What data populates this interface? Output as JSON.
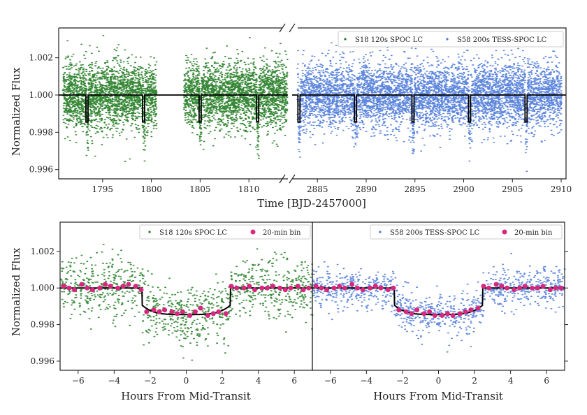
{
  "chart_data": [
    {
      "id": "top",
      "type": "scatter",
      "ylabel": "Normalized Flux",
      "xlabel": "Time [BJD-2457000]",
      "ylim": [
        0.9955,
        1.0036
      ],
      "yticks": [
        0.996,
        0.998,
        1.0,
        1.002
      ],
      "ytick_labels": [
        "0.996",
        "0.998",
        "1.000",
        "1.002"
      ],
      "segments": [
        {
          "name": "S18 120s SPOC LC",
          "color": "#1f7a1f",
          "xlim": [
            1790.5,
            1814.0
          ],
          "xticks": [
            1795,
            1800,
            1805,
            1810
          ],
          "xtick_labels": [
            "1795",
            "1800",
            "1805",
            "1810"
          ],
          "data_ranges": [
            [
              1790.9,
              1800.5
            ],
            [
              1803.3,
              1813.9
            ]
          ],
          "transit_times": [
            1793.4,
            1799.2,
            1805.0,
            1810.9
          ]
        },
        {
          "name": "S58 200s TESS-SPOC LC",
          "color": "#4a78d8",
          "xlim": [
            2882.4,
            2910.5
          ],
          "xticks": [
            2885,
            2890,
            2895,
            2900,
            2905,
            2910
          ],
          "xtick_labels": [
            "2885",
            "2890",
            "2895",
            "2900",
            "2905",
            "2910"
          ],
          "data_ranges": [
            [
              2882.9,
              2910.0
            ]
          ],
          "transit_times": [
            2883.1,
            2888.9,
            2894.8,
            2900.6,
            2906.4
          ]
        }
      ],
      "model": {
        "baseline": 1.0,
        "transit_depth": 0.00145,
        "color": "#000000"
      },
      "legend": [
        {
          "label": "S18 120s SPOC LC",
          "color": "#1f7a1f"
        },
        {
          "label": "S58 200s TESS-SPOC LC",
          "color": "#4a78d8"
        }
      ]
    },
    {
      "id": "bottom-left",
      "type": "scatter",
      "ylabel": "Normalized Flux",
      "xlabel": "Hours From Mid-Transit",
      "xlim": [
        -7,
        7
      ],
      "ylim": [
        0.9955,
        1.0036
      ],
      "xticks": [
        -6,
        -4,
        -2,
        0,
        2,
        4,
        6
      ],
      "xtick_labels": [
        "−6",
        "−4",
        "−2",
        "0",
        "2",
        "4",
        "6"
      ],
      "yticks": [
        0.996,
        0.998,
        1.0,
        1.002
      ],
      "ytick_labels": [
        "0.996",
        "0.998",
        "1.000",
        "1.002"
      ],
      "series": [
        {
          "name": "S18 120s SPOC LC",
          "color": "#1f7a1f",
          "type": "scatter"
        },
        {
          "name": "20-min bin",
          "color": "#d6287e",
          "type": "scatter",
          "x": [
            -6.8,
            -6.5,
            -6.2,
            -5.8,
            -5.5,
            -5.2,
            -4.8,
            -4.5,
            -4.2,
            -3.8,
            -3.5,
            -3.2,
            -2.8,
            -2.5,
            -2.2,
            -1.8,
            -1.5,
            -1.2,
            -0.8,
            -0.5,
            -0.2,
            0.2,
            0.5,
            0.8,
            1.2,
            1.5,
            1.8,
            2.2,
            2.5,
            2.8,
            3.2,
            3.5,
            3.8,
            4.2,
            4.5,
            4.8,
            5.2,
            5.5,
            5.8,
            6.2,
            6.5,
            6.8
          ],
          "y": [
            1.0001,
            1.0,
            0.9999,
            1.0002,
            1.0,
            0.9999,
            1.0,
            1.0002,
            1.0001,
            1.0,
            1.0001,
            1.0002,
            1.0001,
            0.9999,
            0.9987,
            0.9988,
            0.9987,
            0.9988,
            0.9987,
            0.9986,
            0.9987,
            0.9985,
            0.9987,
            0.9989,
            0.9985,
            0.9986,
            0.9987,
            0.9986,
            1.0001,
            1.0,
            1.0,
            1.0001,
            0.9999,
            1.0,
            1.0,
            1.0001,
            1.0,
            0.9999,
            1.0,
            1.0001,
            0.9999,
            1.0
          ]
        }
      ],
      "model": {
        "baseline": 1.0,
        "depth_center": 0.00145,
        "half_duration_hours": 2.45,
        "color": "#000000"
      },
      "legend": [
        {
          "label": "S18 120s SPOC LC",
          "color": "#1f7a1f"
        },
        {
          "label": "20-min bin",
          "color": "#d6287e"
        }
      ]
    },
    {
      "id": "bottom-right",
      "type": "scatter",
      "xlabel": "Hours From Mid-Transit",
      "xlim": [
        -7,
        7
      ],
      "ylim": [
        0.9955,
        1.0036
      ],
      "xticks": [
        -6,
        -4,
        -2,
        0,
        2,
        4,
        6
      ],
      "xtick_labels": [
        "−6",
        "−4",
        "−2",
        "0",
        "2",
        "4",
        "6"
      ],
      "series": [
        {
          "name": "S58 200s TESS-SPOC LC",
          "color": "#4a78d8",
          "type": "scatter"
        },
        {
          "name": "20-min bin",
          "color": "#d6287e",
          "type": "scatter",
          "x": [
            -6.8,
            -6.5,
            -6.2,
            -5.8,
            -5.5,
            -5.2,
            -4.8,
            -4.5,
            -4.2,
            -3.8,
            -3.5,
            -3.2,
            -2.8,
            -2.5,
            -2.2,
            -1.8,
            -1.5,
            -1.2,
            -0.8,
            -0.5,
            -0.2,
            0.2,
            0.5,
            0.8,
            1.2,
            1.5,
            1.8,
            2.2,
            2.5,
            2.8,
            3.2,
            3.5,
            3.8,
            4.2,
            4.5,
            4.8,
            5.2,
            5.5,
            5.8,
            6.2,
            6.5,
            6.8
          ],
          "y": [
            1.0001,
            1.0,
            0.9999,
            1.0,
            1.0001,
            1.0,
            1.0002,
            1.0,
            0.9999,
            1.0,
            1.0001,
            1.0,
            0.9999,
            1.0,
            0.9988,
            0.9987,
            0.9986,
            0.9988,
            0.9986,
            0.9987,
            0.9985,
            0.9985,
            0.9986,
            0.9985,
            0.9986,
            0.9987,
            0.9988,
            0.9989,
            1.0001,
            1.0,
            1.0002,
            1.0001,
            1.0,
            0.9999,
            1.0,
            1.0001,
            1.0,
            1.0,
            1.0001,
            0.9999,
            1.0,
            1.0
          ]
        }
      ],
      "model": {
        "baseline": 1.0,
        "depth_center": 0.00145,
        "half_duration_hours": 2.45,
        "color": "#000000"
      },
      "legend": [
        {
          "label": "S58 200s TESS-SPOC LC",
          "color": "#4a78d8"
        },
        {
          "label": "20-min bin",
          "color": "#d6287e"
        }
      ]
    }
  ]
}
